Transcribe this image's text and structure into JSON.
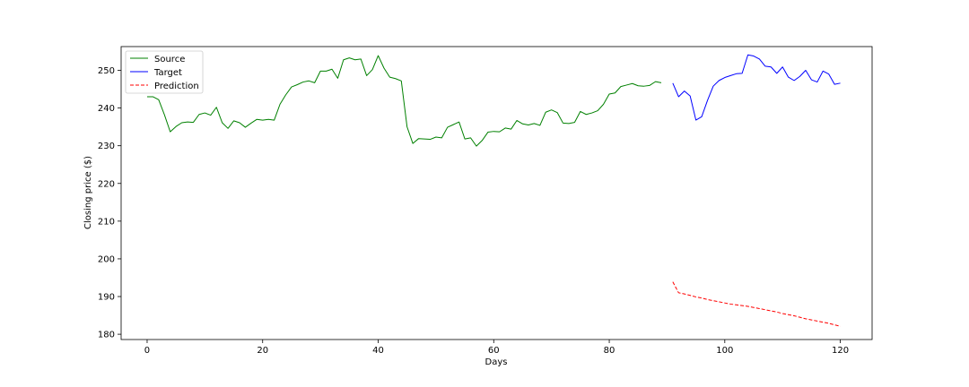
{
  "chart_data": {
    "type": "line",
    "xlabel": "Days",
    "ylabel": "Closing price ($)",
    "xlim": [
      -4.5,
      125.5
    ],
    "ylim": [
      178.6,
      256.3
    ],
    "xticks": [
      0,
      20,
      40,
      60,
      80,
      100,
      120
    ],
    "yticks": [
      180,
      190,
      200,
      210,
      220,
      230,
      240,
      250
    ],
    "grid": false,
    "legend_position": "top-left",
    "series": [
      {
        "name": "Source",
        "color": "#008000",
        "dash": "solid",
        "x": [
          0,
          1,
          2,
          3,
          4,
          5,
          6,
          7,
          8,
          9,
          10,
          11,
          12,
          13,
          14,
          15,
          16,
          17,
          18,
          19,
          20,
          21,
          22,
          23,
          24,
          25,
          26,
          27,
          28,
          29,
          30,
          31,
          32,
          33,
          34,
          35,
          36,
          37,
          38,
          39,
          40,
          41,
          42,
          43,
          44,
          45,
          46,
          47,
          48,
          49,
          50,
          51,
          52,
          53,
          54,
          55,
          56,
          57,
          58,
          59,
          60,
          61,
          62,
          63,
          64,
          65,
          66,
          67,
          68,
          69,
          70,
          71,
          72,
          73,
          74,
          75,
          76,
          77,
          78,
          79,
          80,
          81,
          82,
          83,
          84,
          85,
          86,
          87,
          88,
          89,
          90
        ],
        "y": [
          243.0,
          243.0,
          242.2,
          238.2,
          233.7,
          235.1,
          236.1,
          236.3,
          236.2,
          238.3,
          238.7,
          238.1,
          240.2,
          236.1,
          234.6,
          236.6,
          236.1,
          234.9,
          236.0,
          237.0,
          236.8,
          237.0,
          236.8,
          241.0,
          243.5,
          245.6,
          246.2,
          246.9,
          247.2,
          246.7,
          249.8,
          249.8,
          250.3,
          247.9,
          252.8,
          253.3,
          252.8,
          253.0,
          248.6,
          250.2,
          253.9,
          250.6,
          248.2,
          247.8,
          247.2,
          235.0,
          230.6,
          231.9,
          231.8,
          231.7,
          232.3,
          232.1,
          234.9,
          235.6,
          236.3,
          231.8,
          232.1,
          229.9,
          231.4,
          233.6,
          233.8,
          233.7,
          234.7,
          234.4,
          236.7,
          235.8,
          235.5,
          235.9,
          235.4,
          238.9,
          239.5,
          238.8,
          236.0,
          235.9,
          236.2,
          239.1,
          238.3,
          238.7,
          239.3,
          241.0,
          243.7,
          244.0,
          245.7,
          246.1,
          246.5,
          245.9,
          245.8,
          246.0,
          247.0,
          246.7,
          null
        ]
      },
      {
        "name": "Target",
        "color": "#0000ff",
        "dash": "solid",
        "x": [
          91,
          92,
          93,
          94,
          95,
          96,
          97,
          98,
          99,
          100,
          101,
          102,
          103,
          104,
          105,
          106,
          107,
          108,
          109,
          110,
          111,
          112,
          113,
          114,
          115,
          116,
          117,
          118,
          119,
          120
        ],
        "y": [
          246.6,
          243.0,
          244.5,
          243.2,
          236.8,
          237.7,
          242.0,
          245.8,
          247.3,
          248.1,
          248.6,
          249.1,
          249.2,
          254.1,
          253.8,
          253.0,
          251.1,
          250.9,
          249.2,
          250.9,
          248.2,
          247.3,
          248.4,
          250.0,
          247.5,
          246.9,
          249.8,
          249.0,
          246.3,
          246.6
        ]
      },
      {
        "name": "Prediction",
        "color": "#ff0000",
        "dash": "dashed",
        "x": [
          91,
          92,
          93,
          94,
          95,
          96,
          97,
          98,
          99,
          100,
          101,
          102,
          103,
          104,
          105,
          106,
          107,
          108,
          109,
          110,
          111,
          112,
          113,
          114,
          115,
          116,
          117,
          118,
          119,
          120
        ],
        "y": [
          193.9,
          191.0,
          190.7,
          190.3,
          189.9,
          189.6,
          189.2,
          188.9,
          188.6,
          188.3,
          188.0,
          187.8,
          187.6,
          187.4,
          187.1,
          186.8,
          186.5,
          186.2,
          185.9,
          185.5,
          185.2,
          184.9,
          184.5,
          184.1,
          183.8,
          183.5,
          183.2,
          182.9,
          182.5,
          182.1
        ]
      }
    ]
  }
}
